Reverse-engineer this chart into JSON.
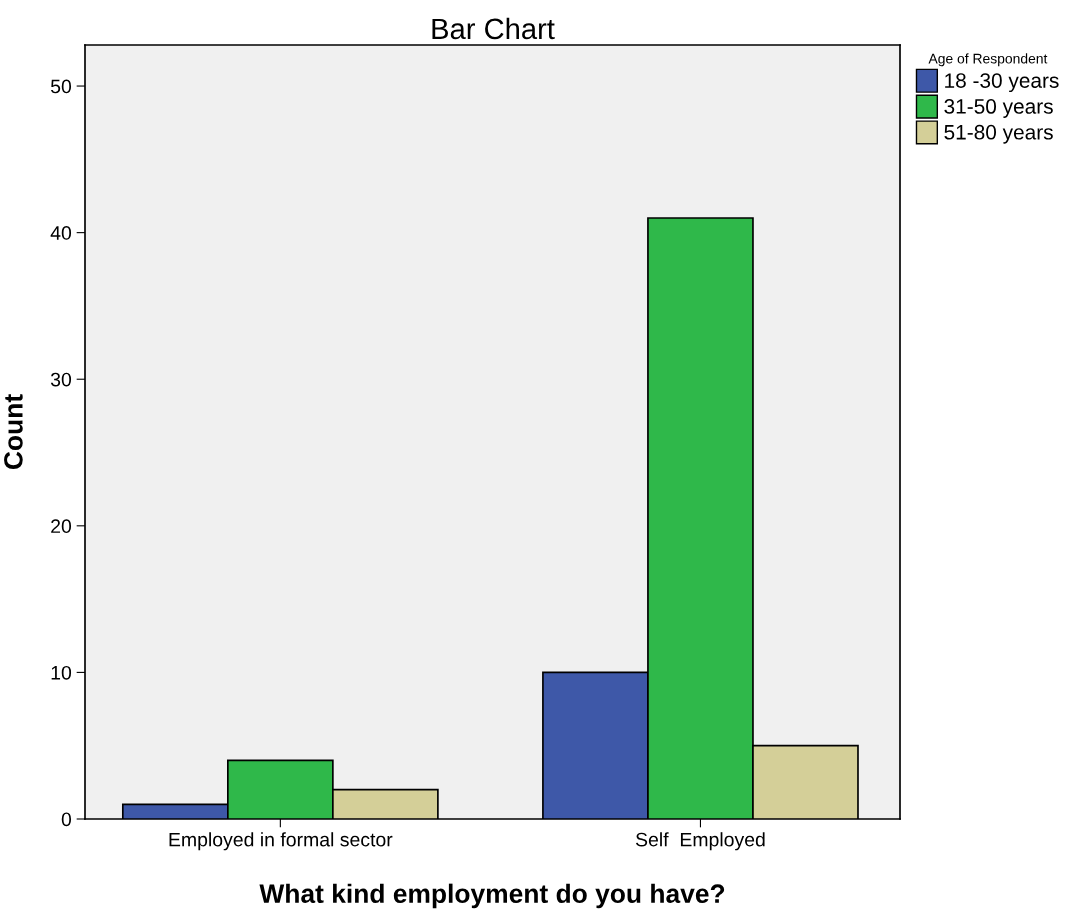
{
  "chart_data": {
    "type": "bar",
    "title": "Bar Chart",
    "xlabel": "What kind employment do you have?",
    "ylabel": "Count",
    "legend_title": "Age of Respondent",
    "categories": [
      "Employed in formal sector",
      "Self  Employed"
    ],
    "series": [
      {
        "name": "18 -30 years",
        "color": "#3e58a8",
        "values": [
          1,
          10
        ]
      },
      {
        "name": "31-50 years",
        "color": "#2fb84a",
        "values": [
          4,
          41
        ]
      },
      {
        "name": "51-80 years",
        "color": "#d4cf98",
        "values": [
          2,
          5
        ]
      }
    ],
    "ylim": [
      0,
      52.8
    ],
    "yticks": [
      0,
      10,
      20,
      30,
      40,
      50
    ],
    "grid": false,
    "legend": "right"
  }
}
